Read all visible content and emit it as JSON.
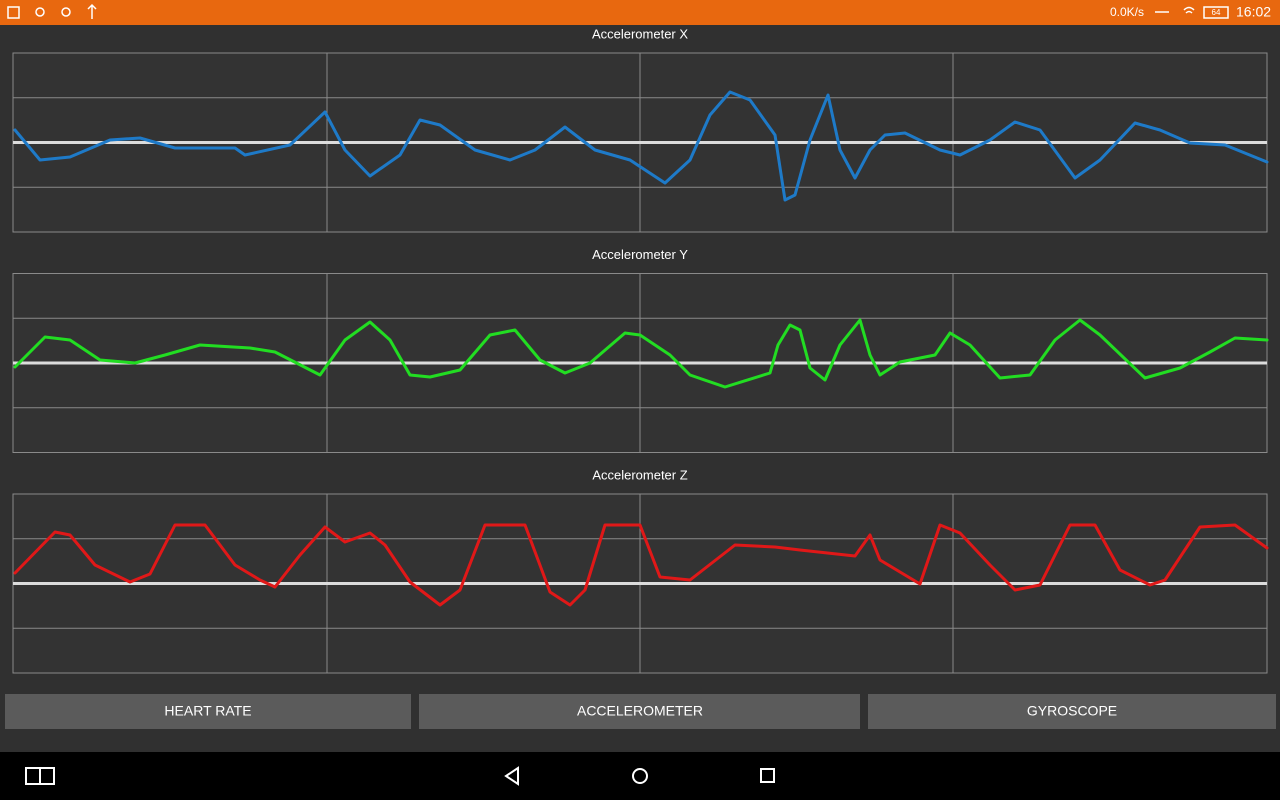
{
  "status_bar": {
    "speed": "0.0K/s",
    "battery": "64",
    "time": "16:02"
  },
  "charts": [
    {
      "title": "Accelerometer X"
    },
    {
      "title": "Accelerometer Y"
    },
    {
      "title": "Accelerometer Z"
    }
  ],
  "buttons": [
    "HEART RATE",
    "ACCELEROMETER",
    "GYROSCOPE"
  ]
}
